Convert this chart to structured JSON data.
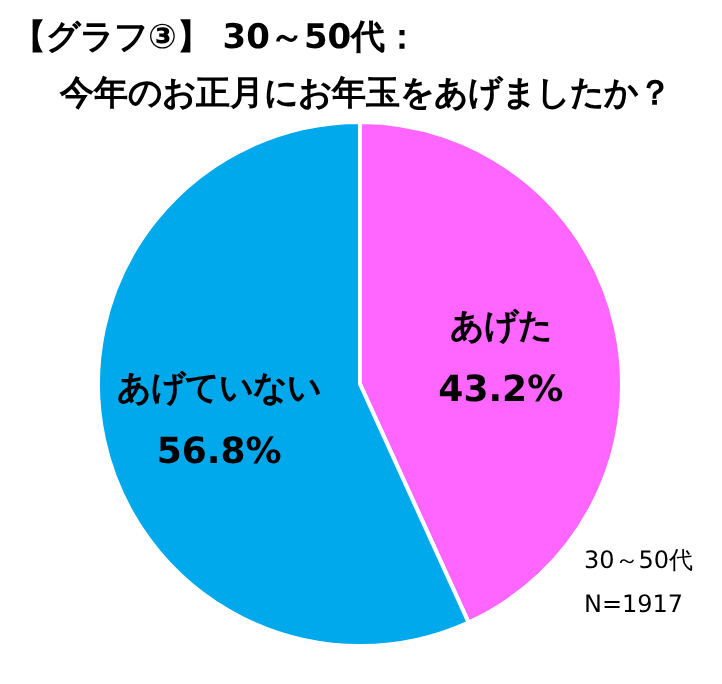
{
  "chart_data": {
    "type": "pie",
    "title": "【グラフ③】 30～50代：",
    "subtitle": "今年のお正月にお年玉をあげましたか？",
    "categories": [
      "あげた",
      "あげていない"
    ],
    "values": [
      43.2,
      56.8
    ],
    "colors": [
      "#ff66ff",
      "#00a9ec"
    ],
    "value_labels": [
      "43.2%",
      "56.8%"
    ],
    "annotations": [
      "30～50代",
      "N=1917"
    ]
  }
}
